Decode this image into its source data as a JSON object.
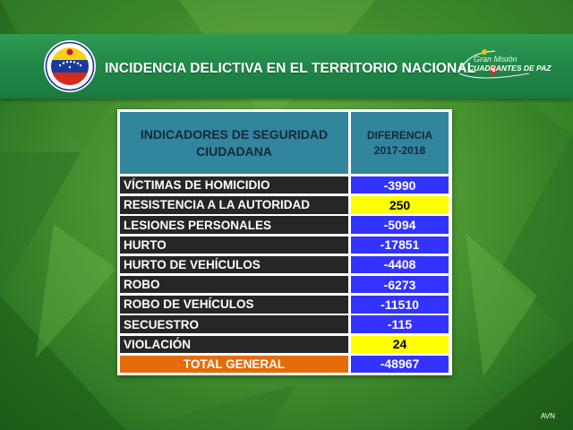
{
  "banner": {
    "title": "INCIDENCIA DELICTIVA EN EL TERRITORIO NACIONAL",
    "seal_logo": "seal-logo",
    "program_logo": {
      "line1": "Gran Misión",
      "line2": "CUADRANTES DE PAZ"
    }
  },
  "table": {
    "header_indicator_line1": "INDICADORES DE SEGURIDAD",
    "header_indicator_line2": "CIUDADANA",
    "header_diff_line1": "DIFERENCIA",
    "header_diff_line2": "2017-2018",
    "rows": [
      {
        "label": "VÍCTIMAS DE HOMICIDIO",
        "value": "-3990",
        "highlight": false
      },
      {
        "label": "RESISTENCIA A LA AUTORIDAD",
        "value": "250",
        "highlight": true
      },
      {
        "label": "LESIONES PERSONALES",
        "value": "-5094",
        "highlight": false
      },
      {
        "label": "HURTO",
        "value": "-17851",
        "highlight": false
      },
      {
        "label": "HURTO DE VEHÍCULOS",
        "value": "-4408",
        "highlight": false
      },
      {
        "label": "ROBO",
        "value": "-6273",
        "highlight": false
      },
      {
        "label": "ROBO DE VEHÍCULOS",
        "value": "-11510",
        "highlight": false
      },
      {
        "label": "SECUESTRO",
        "value": "-115",
        "highlight": false
      },
      {
        "label": "VIOLACIÓN",
        "value": "24",
        "highlight": true
      }
    ],
    "total": {
      "label": "TOTAL GENERAL",
      "value": "-48967"
    }
  },
  "colors": {
    "header_teal": "#31859c",
    "row_dark": "#262626",
    "value_blue": "#3333ff",
    "value_highlight": "#ffff00",
    "total_orange": "#e46c0a",
    "banner_green": "#1f8446"
  },
  "credit": "AVN"
}
